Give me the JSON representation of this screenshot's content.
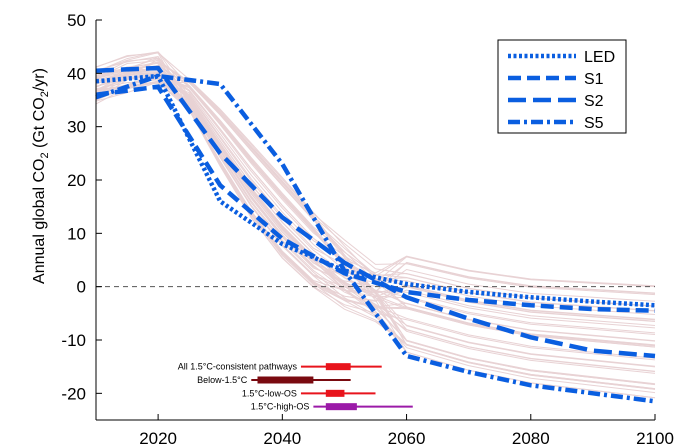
{
  "chart_data": {
    "type": "line",
    "title": "",
    "xlabel": "",
    "ylabel_parts": [
      "Annual global CO",
      "2",
      " (Gt CO",
      "2",
      "/yr)"
    ],
    "xlim": [
      2010,
      2100
    ],
    "ylim": [
      -25,
      50
    ],
    "xticks": [
      2020,
      2040,
      2060,
      2080,
      2100
    ],
    "yticks": [
      -20,
      -10,
      0,
      10,
      20,
      30,
      40,
      50
    ],
    "zero_line": true,
    "legend_position": "top-right",
    "colors": {
      "series": "#0a5ee0",
      "background_pathways": "#e8d2d4",
      "axis": "#000000",
      "zero_line": "#555555"
    },
    "series": [
      {
        "name": "LED",
        "style": "dotted",
        "x": [
          2010,
          2020,
          2030,
          2040,
          2050,
          2060,
          2070,
          2080,
          2090,
          2100
        ],
        "y": [
          38.5,
          39.5,
          16,
          8,
          3,
          0.5,
          -1,
          -2,
          -2.8,
          -3.5
        ]
      },
      {
        "name": "S1",
        "style": "dashed",
        "x": [
          2010,
          2020,
          2030,
          2040,
          2050,
          2060,
          2070,
          2080,
          2090,
          2100
        ],
        "y": [
          36,
          37.5,
          19,
          9,
          2.5,
          -1,
          -2.5,
          -3.5,
          -4.2,
          -4.5
        ]
      },
      {
        "name": "S2",
        "style": "long-dashed",
        "x": [
          2010,
          2020,
          2030,
          2040,
          2050,
          2060,
          2070,
          2080,
          2090,
          2100
        ],
        "y": [
          40.5,
          41,
          25,
          13,
          4.5,
          -2,
          -6,
          -9.5,
          -12,
          -13
        ]
      },
      {
        "name": "S5",
        "style": "dash-dot",
        "x": [
          2010,
          2020,
          2030,
          2040,
          2050,
          2060,
          2070,
          2080,
          2090,
          2100
        ],
        "y": [
          35.5,
          39.5,
          38,
          23,
          3,
          -13,
          -16,
          -18.5,
          -20,
          -21.5
        ]
      }
    ],
    "background_pathways": {
      "x": [
        2010,
        2015,
        2020,
        2025,
        2030,
        2035,
        2040,
        2045,
        2050,
        2055,
        2060,
        2070,
        2080,
        2090,
        2100
      ],
      "count": 48
    },
    "ranges": [
      {
        "label": "All 1.5°C-consistent pathways",
        "y": -15,
        "whisker": [
          2043,
          2056
        ],
        "box": [
          2047,
          2051
        ],
        "color": "#e8141c"
      },
      {
        "label": "Below-1.5°C",
        "y": -17.5,
        "whisker": [
          2035,
          2051
        ],
        "box": [
          2036,
          2045
        ],
        "color": "#7a0a10"
      },
      {
        "label": "1.5°C-low-OS",
        "y": -20,
        "whisker": [
          2043,
          2055
        ],
        "box": [
          2047,
          2050
        ],
        "color": "#e8141c"
      },
      {
        "label": "1.5°C-high-OS",
        "y": -22.5,
        "whisker": [
          2045,
          2061
        ],
        "box": [
          2047,
          2052
        ],
        "color": "#9b1aa8"
      }
    ]
  }
}
